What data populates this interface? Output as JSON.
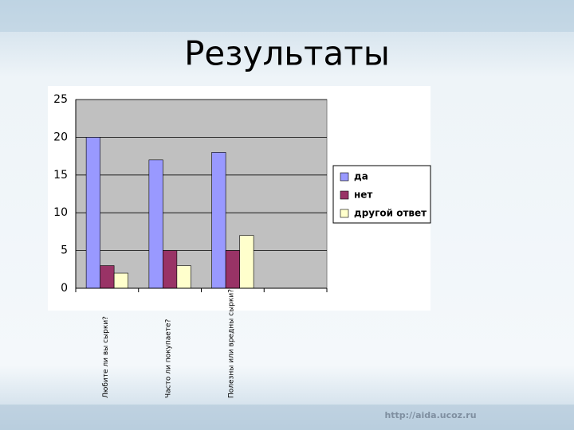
{
  "slide_title": "Результаты",
  "footer_url": "http://aida.ucoz.ru",
  "chart_data": {
    "type": "bar",
    "categories": [
      "Любите ли вы сырки?",
      "Часто ли покупаете?",
      "Полезны или вредны сырки?",
      null
    ],
    "series": [
      {
        "name": "да",
        "color": "#9999ff",
        "values": [
          20,
          17,
          18,
          null
        ]
      },
      {
        "name": "нет",
        "color": "#993366",
        "values": [
          3,
          5,
          5,
          null
        ]
      },
      {
        "name": "другой ответ",
        "color": "#ffffcc",
        "values": [
          2,
          3,
          7,
          null
        ]
      }
    ],
    "ylim": [
      0,
      25
    ],
    "yticks": [
      0,
      5,
      10,
      15,
      20,
      25
    ],
    "grid": true,
    "legend": "right"
  }
}
